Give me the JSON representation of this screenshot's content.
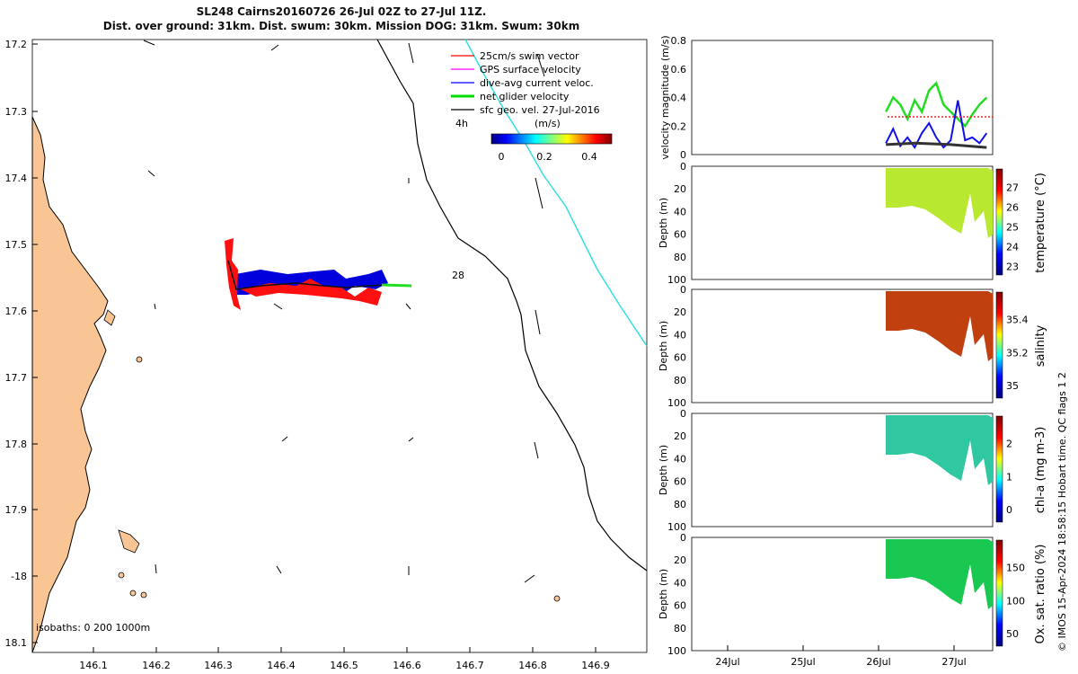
{
  "header": {
    "title_line1": "SL248 Cairns20160726 26-Jul 02Z to 27-Jul 11Z.",
    "title_line2": "Dist. over ground: 31km. Dist. swum: 30km. Mission DOG: 31km. Swum: 30km"
  },
  "map": {
    "lon_ticks": [
      "146.1",
      "146.2",
      "146.3",
      "146.4",
      "146.5",
      "146.6",
      "146.7",
      "146.8",
      "146.9"
    ],
    "lat_ticks": [
      "17.2",
      "17.3",
      "17.4",
      "17.5",
      "17.6",
      "17.7",
      "17.8",
      "17.9",
      "-18",
      "18.1"
    ],
    "legend": [
      {
        "label": "25cm/s swim vector",
        "color": "#ff0000"
      },
      {
        "label": "GPS surface velocity",
        "color": "#ff00ff"
      },
      {
        "label": "dive-avg current veloc.",
        "color": "#0000ff"
      },
      {
        "label": "net glider velocity",
        "color": "#00dd00"
      },
      {
        "label": "sfc geo. vel. 27-Jul-2016",
        "color": "#000000"
      }
    ],
    "time_label": "4h",
    "colorbar_title": "(m/s)",
    "colorbar_ticks": [
      "0",
      "0.2",
      "0.4"
    ],
    "day_label": "28",
    "isobaths_label": "isobaths: 0   200  1000m",
    "land_color": "#f9c594",
    "shelf_line_color": "#33e0e0"
  },
  "right_panels": {
    "velocity": {
      "ylabel": "velocity magnitude (m/s)",
      "yticks": [
        "0",
        "0.2",
        "0.4",
        "0.6",
        "0.8"
      ]
    },
    "depth_ylabel": "Depth (m)",
    "depth_ticks": [
      "0",
      "20",
      "40",
      "60",
      "80",
      "100"
    ],
    "panels": [
      {
        "cblabel": "temperature (°C)",
        "cbticks": [
          "23",
          "24",
          "25",
          "26",
          "27"
        ]
      },
      {
        "cblabel": "salinity",
        "cbticks": [
          "35",
          "35.2",
          "35.4"
        ]
      },
      {
        "cblabel": "chl-a (mg m-3)",
        "cbticks": [
          "0",
          "1",
          "2"
        ]
      },
      {
        "cblabel": "Ox. sat. ratio (%)",
        "cbticks": [
          "50",
          "100",
          "150"
        ]
      }
    ],
    "x_ticks": [
      "24Jul",
      "25Jul",
      "26Jul",
      "27Jul"
    ]
  },
  "footer_note": "© IMOS 15-Apr-2024 18:58:15 Hobart time. QC flags 1  2",
  "chart_data": [
    {
      "type": "line",
      "title": "SL248 Cairns20160726 26-Jul 02Z to 27-Jul 11Z.",
      "xlabel": "",
      "ylabel": "",
      "xlim": [
        146.0,
        146.98
      ],
      "ylim": [
        -18.12,
        -17.19
      ],
      "series": [
        {
          "name": "net glider velocity",
          "x": [
            146.32,
            146.38,
            146.45,
            146.52,
            146.56,
            146.6
          ],
          "y": [
            -17.52,
            -17.565,
            -17.555,
            -17.56,
            -17.565,
            -17.565
          ]
        }
      ]
    },
    {
      "type": "line",
      "title": "",
      "xlabel": "",
      "ylabel": "velocity magnitude (m/s)",
      "xlim": [
        23.4,
        27.5
      ],
      "ylim": [
        0,
        0.8
      ],
      "series": [
        {
          "name": "net glider velocity",
          "x": [
            26.1,
            26.2,
            26.3,
            26.4,
            26.5,
            26.6,
            26.7,
            26.8,
            26.9,
            27.0,
            27.1,
            27.2,
            27.3,
            27.4,
            27.5
          ],
          "y": [
            0.3,
            0.4,
            0.35,
            0.25,
            0.38,
            0.3,
            0.45,
            0.5,
            0.35,
            0.3,
            0.25,
            0.2,
            0.28,
            0.35,
            0.4
          ]
        },
        {
          "name": "dive-avg current veloc.",
          "x": [
            26.1,
            26.2,
            26.3,
            26.4,
            26.5,
            26.6,
            26.7,
            26.8,
            26.9,
            27.0,
            27.1,
            27.2,
            27.3,
            27.4,
            27.5
          ],
          "y": [
            0.08,
            0.18,
            0.06,
            0.12,
            0.05,
            0.15,
            0.22,
            0.12,
            0.05,
            0.1,
            0.38,
            0.1,
            0.12,
            0.08,
            0.15
          ]
        },
        {
          "name": "sfc geo. vel. 27-Jul-2016",
          "x": [
            26.1,
            26.5,
            27.0,
            27.5
          ],
          "y": [
            0.07,
            0.08,
            0.07,
            0.05
          ]
        }
      ]
    }
  ]
}
